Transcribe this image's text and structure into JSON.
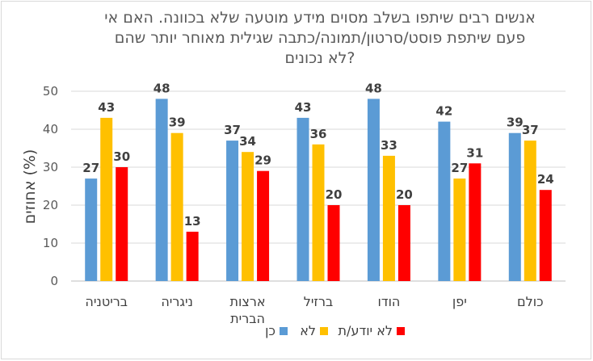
{
  "chart_data": {
    "type": "bar",
    "title_lines": [
      "אנשים רבים שיתפו בשלב מסוים מידע מוטעה שלא בכוונה. האם אי",
      "פעם שיתפת פוסט/סרטון/תמונה/כתבה שגילית מאוחר יותר שהם",
      "לא נכונים?"
    ],
    "ylabel": "אחוזים (%)",
    "ylim": [
      0,
      50
    ],
    "yticks": [
      0,
      10,
      20,
      30,
      40,
      50
    ],
    "grid": true,
    "legend_position": "bottom",
    "categories": [
      [
        "בריטניה"
      ],
      [
        "ניגריה"
      ],
      [
        "ארצות",
        "הברית"
      ],
      [
        "ברזיל"
      ],
      [
        "הודו"
      ],
      [
        "יפן"
      ],
      [
        "כולם"
      ]
    ],
    "series": [
      {
        "name": "כן",
        "color": "#5b9bd5",
        "values": [
          27,
          48,
          37,
          43,
          48,
          42,
          39
        ]
      },
      {
        "name": "לא",
        "color": "#ffc000",
        "values": [
          43,
          39,
          34,
          36,
          33,
          27,
          37
        ]
      },
      {
        "name": "לא יודע/ת",
        "color": "#ff0000",
        "values": [
          30,
          13,
          29,
          20,
          20,
          31,
          24
        ]
      }
    ]
  }
}
